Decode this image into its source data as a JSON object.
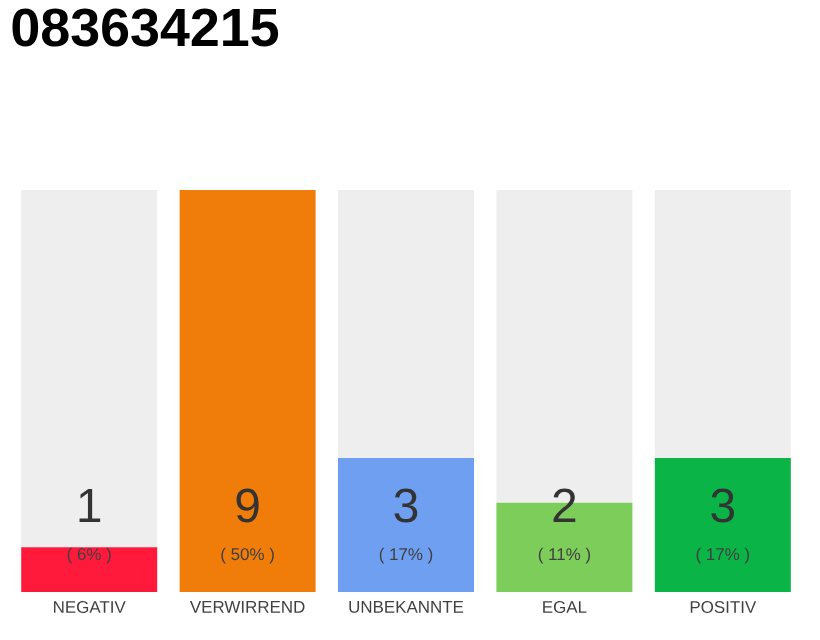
{
  "chart_data": {
    "type": "bar",
    "title": "083634215",
    "categories": [
      "NEGATIV",
      "VERWIRREND",
      "UNBEKANNTE",
      "EGAL",
      "POSITIV"
    ],
    "stacked": true,
    "tick_labels": "x",
    "series": [
      {
        "colors": [
          "#ff1a3c",
          "#f07d0a",
          "#6e9ff0",
          "#7dcd5a",
          "#0ab446"
        ],
        "values": [
          1,
          9,
          3,
          2,
          3
        ],
        "value_labels": [
          "1",
          "9",
          "3",
          "2",
          "3"
        ]
      },
      {
        "color": "#eeeeee",
        "values": [
          8,
          0,
          6,
          7,
          6
        ]
      }
    ],
    "annotations": [
      "( 6% )",
      "( 50% )",
      "( 17% )",
      "( 11% )",
      "( 17% )"
    ]
  }
}
